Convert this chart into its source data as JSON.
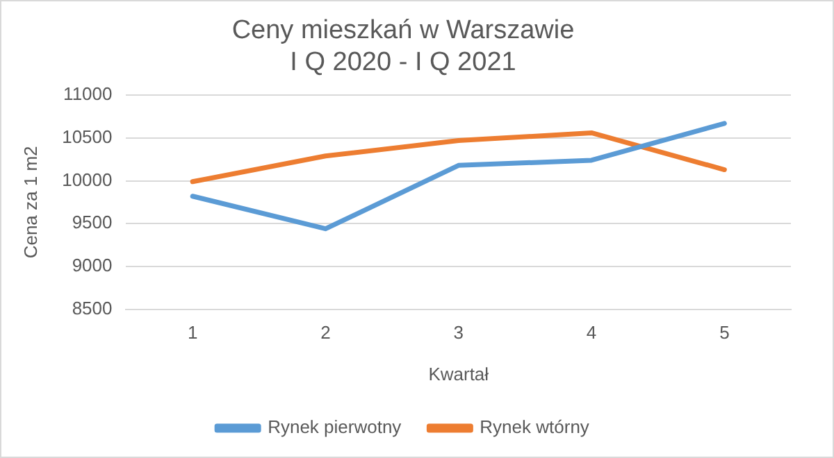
{
  "chart_data": {
    "type": "line",
    "title": "Ceny mieszkań w Warszawie",
    "subtitle": "I Q 2020 - I Q 2021",
    "xlabel": "Kwartał",
    "ylabel": "Cena za 1 m2",
    "categories": [
      "1",
      "2",
      "3",
      "4",
      "5"
    ],
    "series": [
      {
        "name": "Rynek pierwotny",
        "color": "#5b9bd5",
        "values": [
          9820,
          9440,
          10180,
          10240,
          10670
        ]
      },
      {
        "name": "Rynek wtórny",
        "color": "#ed7d31",
        "values": [
          9990,
          10290,
          10470,
          10560,
          10130
        ]
      }
    ],
    "ylim": [
      8500,
      11000
    ],
    "yticks": [
      8500,
      9000,
      9500,
      10000,
      10500,
      11000
    ],
    "grid": "y",
    "legend": "bottom",
    "marker": "none",
    "line_style": "solid"
  }
}
